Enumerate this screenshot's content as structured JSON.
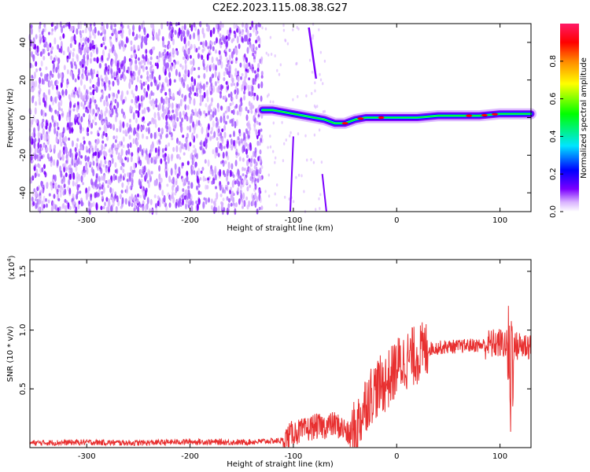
{
  "title": "C2E2.2023.115.08.38.G27",
  "chart_data": [
    {
      "type": "heatmap",
      "xlabel": "Height of straight line (km)",
      "ylabel": "Frequency (Hz)",
      "xlim": [
        -355,
        130
      ],
      "ylim": [
        -50,
        50
      ],
      "x_ticks": [
        -300,
        -200,
        -100,
        0,
        100
      ],
      "x_tick_labels": [
        "-300",
        "-200",
        "-100",
        "0",
        "100"
      ],
      "y_ticks": [
        -40,
        -20,
        0,
        20,
        40
      ],
      "y_tick_labels": [
        "-40",
        "-20",
        "0",
        "20",
        "40"
      ],
      "noise_region_x": [
        -355,
        -130
      ],
      "signal_trace": {
        "x": [
          -130,
          -120,
          -110,
          -100,
          -90,
          -80,
          -70,
          -60,
          -50,
          -40,
          -30,
          -20,
          -10,
          0,
          20,
          40,
          60,
          80,
          100,
          120,
          130
        ],
        "y": [
          4,
          4,
          3,
          2,
          1,
          0,
          -1,
          -3,
          -3,
          -1,
          0,
          0,
          0,
          0,
          0,
          1,
          1,
          1,
          2,
          2,
          2
        ]
      },
      "colorbar": {
        "label": "Normalized spectral amplitude",
        "range": [
          0,
          1
        ],
        "ticks": [
          0,
          0.2,
          0.4,
          0.6,
          0.8
        ],
        "tick_labels": [
          "0.0",
          "0.2",
          "0.4",
          "0.6",
          "0.8"
        ]
      },
      "colors": [
        "#ffffff",
        "#d9b3ff",
        "#7b00ff",
        "#0000ff",
        "#00e5ff",
        "#00ff00",
        "#ffff00",
        "#ff8800",
        "#ff0000",
        "#ff1a66"
      ]
    },
    {
      "type": "line",
      "xlabel": "Height of straight line (km)",
      "ylabel": "SNR (10 * v/v)",
      "y_multiplier": "(x10",
      "y_multiplier_exp": "4",
      "y_multiplier_close": ")",
      "xlim": [
        -355,
        130
      ],
      "ylim": [
        0,
        16000
      ],
      "x_ticks": [
        -300,
        -200,
        -100,
        0,
        100
      ],
      "x_tick_labels": [
        "-300",
        "-200",
        "-100",
        "0",
        "100"
      ],
      "y_ticks": [
        5000,
        10000,
        15000
      ],
      "y_tick_labels": [
        "0.5",
        "1.0",
        "1.5"
      ],
      "color": "#e83030",
      "series": [
        {
          "x": [
            -355,
            -300,
            -250,
            -200,
            -150,
            -110,
            -100,
            -90,
            -80,
            -70,
            -60,
            -50,
            -45,
            -40,
            -35,
            -30,
            -25,
            -20,
            -15,
            -10,
            -5,
            0,
            10,
            20,
            30,
            40,
            50,
            60,
            70,
            80,
            90,
            100,
            105,
            108,
            110,
            111,
            112,
            115,
            120,
            130
          ],
          "y": [
            400,
            450,
            400,
            500,
            450,
            600,
            1300,
            1400,
            1800,
            1800,
            2000,
            1500,
            800,
            1600,
            2500,
            3900,
            4500,
            5000,
            5300,
            5600,
            6100,
            6900,
            7500,
            7900,
            8400,
            8500,
            8600,
            8600,
            8700,
            8700,
            8800,
            8900,
            8800,
            8700,
            4000,
            8800,
            8400,
            8600,
            8700,
            8700
          ]
        }
      ]
    }
  ]
}
